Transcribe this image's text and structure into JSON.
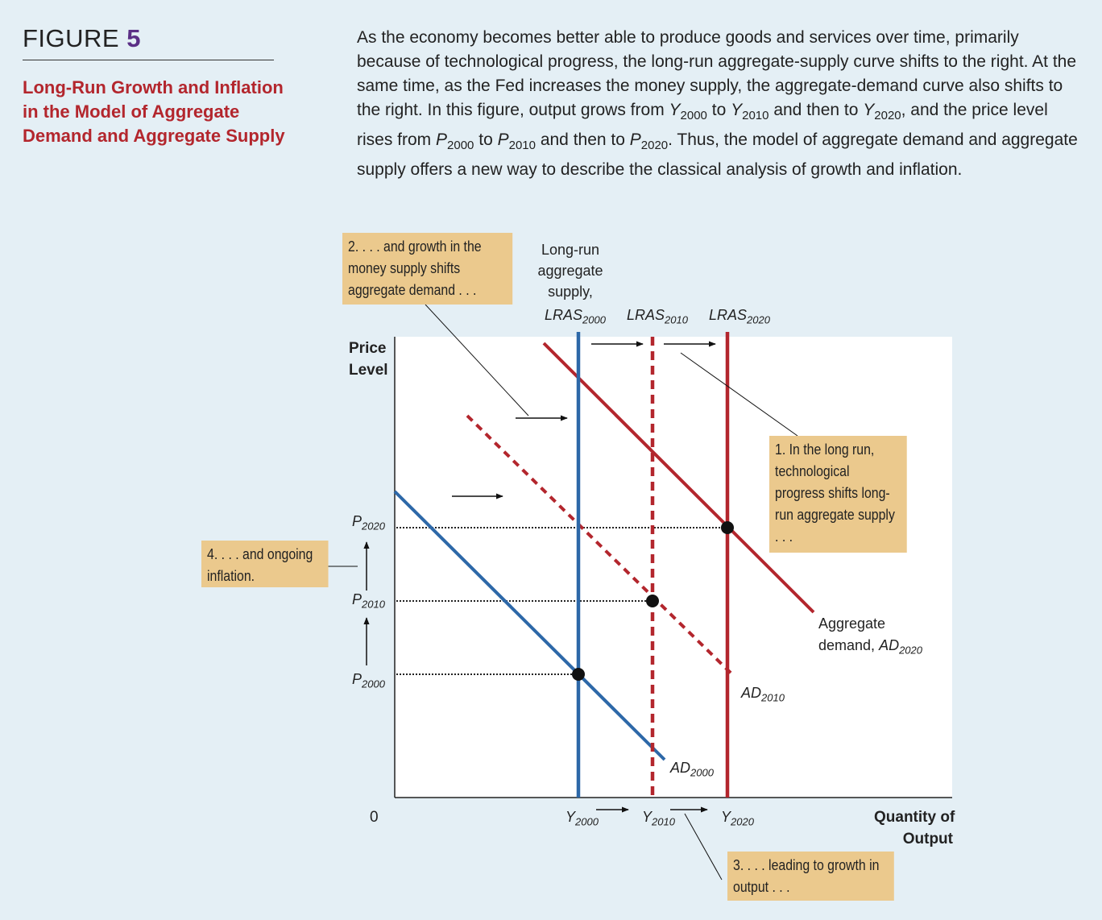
{
  "header": {
    "figure_word": "FIGURE",
    "figure_number": "5",
    "title": "Long-Run Growth and Inflation in the Model of Aggregate Demand and Aggregate Supply"
  },
  "caption": {
    "p1": "As the economy becomes better able to produce goods and services over time, primarily because of technological progress, the long-run aggregate-supply curve shifts to the right. At the same time, as the Fed increases the money supply, the aggregate-demand curve also shifts to the right. In this figure, output grows from ",
    "y2000": "Y",
    "y2000_sub": "2000",
    "p2": " to ",
    "y2010": "Y",
    "y2010_sub": "2010",
    "p3": " and then to ",
    "y2020": "Y",
    "y2020_sub": "2020",
    "p4": ", and the price level rises from ",
    "p2000": "P",
    "p2000_sub": "2000",
    "p5": " to ",
    "p2010": "P",
    "p2010_sub": "2010",
    "p6": " and then to ",
    "p2020": "P",
    "p2020_sub": "2020",
    "p7": ". Thus, the model of aggregate demand and aggregate supply offers a new way to describe the classical analysis of growth and inflation."
  },
  "axes": {
    "y_label_line1": "Price",
    "y_label_line2": "Level",
    "x_label_line1": "Quantity of",
    "x_label_line2": "Output",
    "origin": "0"
  },
  "curves": {
    "lras_heading_1": "Long-run",
    "lras_heading_2": "aggregate",
    "lras_heading_3": "supply,",
    "lras_name": "LRAS",
    "lras_2000_sub": "2000",
    "lras_2010_sub": "2010",
    "lras_2020_sub": "2020",
    "ad_name": "AD",
    "ad_2000_sub": "2000",
    "ad_2010_sub": "2010",
    "ad_2020_line1": "Aggregate",
    "ad_2020_line2": "demand, ",
    "ad_2020_sub": "2020"
  },
  "ticks": {
    "p_symbol": "P",
    "y_symbol": "Y",
    "p2000_sub": "2000",
    "p2010_sub": "2010",
    "p2020_sub": "2020",
    "y2000_sub": "2000",
    "y2010_sub": "2010",
    "y2020_sub": "2020"
  },
  "notes": {
    "note1": "1. In the long run, technological progress shifts long-run aggregate supply . . .",
    "note2": "2. . . . and growth in the money supply shifts aggregate demand . . .",
    "note3": "3. . . . leading to growth in output . . .",
    "note4": "4. . . . and ongoing inflation."
  },
  "colors": {
    "background": "#e4eff5",
    "blue_curve": "#2d68a8",
    "red_curve": "#b3262d",
    "note_fill": "#ebc98d",
    "figure_number": "#5b2f86"
  }
}
